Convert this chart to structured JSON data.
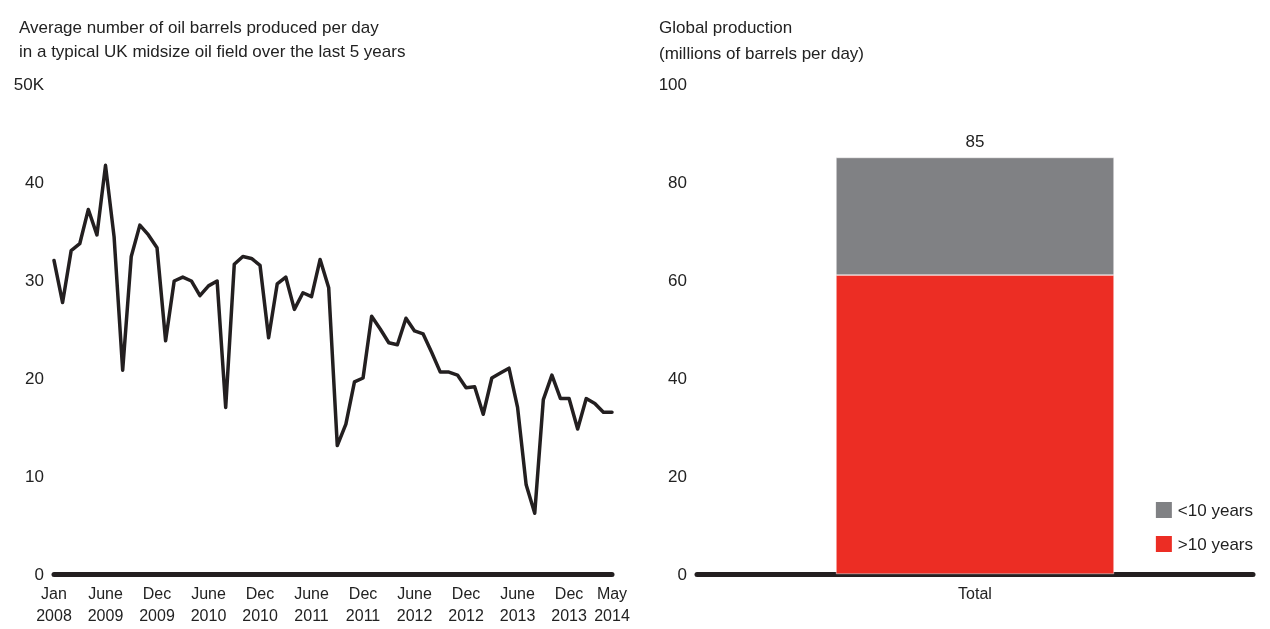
{
  "chart_data": [
    {
      "type": "line",
      "title": "Average number of oil barrels produced per day\nin a typical UK midsize oil field over the last 5 years",
      "categories": [
        "Jan\n2008",
        null,
        null,
        null,
        null,
        null,
        "June\n2009",
        null,
        null,
        null,
        null,
        null,
        "Dec\n2009",
        null,
        null,
        null,
        null,
        null,
        "June\n2010",
        null,
        null,
        null,
        null,
        null,
        "Dec\n2010",
        null,
        null,
        null,
        null,
        null,
        "June\n2011",
        null,
        null,
        null,
        null,
        null,
        "Dec\n2011",
        null,
        null,
        null,
        null,
        null,
        "June\n2012",
        null,
        null,
        null,
        null,
        null,
        "Dec\n2012",
        null,
        null,
        null,
        null,
        null,
        "June\n2013",
        null,
        null,
        null,
        null,
        null,
        "Dec\n2013",
        null,
        null,
        null,
        null,
        "May\n2014"
      ],
      "series": [
        {
          "color": "#231f20",
          "values": [
            32.0,
            27.7,
            33.0,
            33.7,
            37.2,
            34.6,
            41.7,
            34.4,
            20.8,
            32.4,
            35.6,
            34.6,
            33.3,
            23.8,
            29.9,
            30.3,
            29.9,
            28.4,
            29.4,
            29.9,
            17.0,
            31.6,
            32.4,
            32.2,
            31.5,
            24.1,
            29.6,
            30.3,
            27.0,
            28.7,
            28.3,
            32.1,
            29.2,
            13.1,
            15.3,
            19.6,
            20.0,
            26.3,
            25.0,
            23.6,
            23.4,
            26.1,
            24.8,
            24.5,
            22.6,
            20.6,
            20.6,
            20.3,
            19.0,
            19.1,
            16.3,
            20.0,
            20.5,
            21.0,
            17.0,
            9.1,
            6.2,
            17.8,
            20.3,
            17.9,
            17.9,
            14.8,
            17.9,
            17.4,
            16.5,
            16.5
          ]
        }
      ],
      "ylim": [
        0,
        50
      ],
      "yticks": [
        0,
        10,
        20,
        30,
        40,
        {
          "value": 50,
          "label": "50K"
        }
      ],
      "grid": false,
      "legend": false,
      "marker": "none",
      "line_style": "solid"
    },
    {
      "type": "bar",
      "title": "Global production",
      "subtitle": "(millions of barrels per day)",
      "categories": [
        "Total"
      ],
      "stacked": true,
      "series": [
        {
          "name": ">10 years",
          "color": "#ec2d24",
          "values": [
            61
          ]
        },
        {
          "name": "<10 years",
          "color": "#808184",
          "values": [
            24
          ]
        }
      ],
      "totals": [
        "85"
      ],
      "ylim": [
        0,
        100
      ],
      "yticks": [
        0,
        20,
        40,
        60,
        80,
        100
      ],
      "grid": false,
      "legend": "bottom right"
    }
  ]
}
